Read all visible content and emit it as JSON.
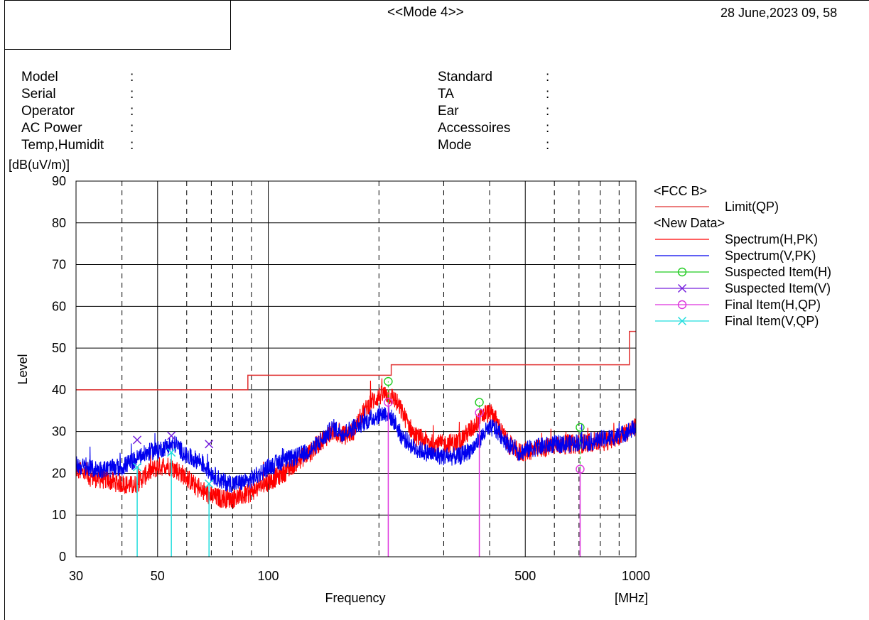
{
  "header": {
    "mode_title": "<<Mode 4>>",
    "datetime": "28 June,2023 09, 58"
  },
  "info_left": [
    {
      "label": "Model",
      "sep": ":"
    },
    {
      "label": "Serial",
      "sep": ":"
    },
    {
      "label": "Operator",
      "sep": ":"
    },
    {
      "label": "AC Power",
      "sep": ":"
    },
    {
      "label": "Temp,Humidit",
      "sep": ":"
    }
  ],
  "info_right": [
    {
      "label": "Standard",
      "sep": ":"
    },
    {
      "label": "TA",
      "sep": ":"
    },
    {
      "label": "Ear",
      "sep": ":"
    },
    {
      "label": "Accessoires",
      "sep": ":"
    },
    {
      "label": "Mode",
      "sep": ":"
    }
  ],
  "chart_data": {
    "type": "line",
    "xscale": "log",
    "xlim": [
      30,
      1000
    ],
    "ylim": [
      0,
      90
    ],
    "y_unit": "[dB(uV/m)]",
    "ylabel": "Level",
    "xlabel": "Frequency",
    "x_unit": "[MHz]",
    "x_ticks": [
      30,
      50,
      100,
      500,
      1000
    ],
    "y_ticks": [
      0,
      10,
      20,
      30,
      40,
      50,
      60,
      70,
      80,
      90
    ],
    "grid": true,
    "legend_position": "right",
    "colors": {
      "limit": "#e03030",
      "spec_h": "#ff0000",
      "spec_v": "#0000ee",
      "susp_h": "#22cc22",
      "susp_v": "#7722dd",
      "final_h": "#dd33dd",
      "final_v": "#22dddd"
    },
    "legend": {
      "limit_group": "<FCC B>",
      "limit_label": "Limit(QP)",
      "data_group": "<New Data>",
      "spec_h": "Spectrum(H,PK)",
      "spec_v": "Spectrum(V,PK)",
      "susp_h": "Suspected Item(H)",
      "susp_v": "Suspected Item(V)",
      "final_h": "Final Item(H,QP)",
      "final_v": "Final Item(V,QP)"
    },
    "limit_qp": [
      [
        30,
        40
      ],
      [
        88,
        40
      ],
      [
        88,
        43.5
      ],
      [
        216,
        43.5
      ],
      [
        216,
        46
      ],
      [
        960,
        46
      ],
      [
        960,
        54
      ],
      [
        1000,
        54
      ]
    ],
    "spectrum_h_pk": [
      [
        30,
        21
      ],
      [
        33,
        19
      ],
      [
        36,
        18.5
      ],
      [
        40,
        17.5
      ],
      [
        43,
        17
      ],
      [
        47,
        20
      ],
      [
        50,
        21.5
      ],
      [
        53,
        22
      ],
      [
        56,
        21
      ],
      [
        60,
        19
      ],
      [
        65,
        16
      ],
      [
        70,
        14.5
      ],
      [
        75,
        14
      ],
      [
        80,
        14
      ],
      [
        88,
        15
      ],
      [
        95,
        17
      ],
      [
        100,
        18
      ],
      [
        110,
        20
      ],
      [
        120,
        23
      ],
      [
        130,
        25
      ],
      [
        140,
        28
      ],
      [
        150,
        30
      ],
      [
        160,
        29
      ],
      [
        170,
        30
      ],
      [
        180,
        34
      ],
      [
        190,
        37
      ],
      [
        200,
        38.5
      ],
      [
        210,
        39
      ],
      [
        220,
        38
      ],
      [
        230,
        35
      ],
      [
        250,
        29
      ],
      [
        280,
        27
      ],
      [
        300,
        27
      ],
      [
        330,
        27.5
      ],
      [
        360,
        31
      ],
      [
        390,
        34.5
      ],
      [
        410,
        34
      ],
      [
        430,
        30
      ],
      [
        450,
        27
      ],
      [
        480,
        25
      ],
      [
        520,
        25.5
      ],
      [
        560,
        26
      ],
      [
        600,
        26.5
      ],
      [
        650,
        27
      ],
      [
        700,
        27
      ],
      [
        750,
        27.5
      ],
      [
        800,
        27.5
      ],
      [
        850,
        28
      ],
      [
        900,
        29
      ],
      [
        950,
        30
      ],
      [
        1000,
        31
      ]
    ],
    "spectrum_v_pk": [
      [
        30,
        22
      ],
      [
        33,
        21
      ],
      [
        36,
        21
      ],
      [
        40,
        21.5
      ],
      [
        43,
        23
      ],
      [
        47,
        25
      ],
      [
        50,
        25.5
      ],
      [
        53,
        26.5
      ],
      [
        56,
        27
      ],
      [
        60,
        24
      ],
      [
        65,
        23
      ],
      [
        70,
        20
      ],
      [
        75,
        18
      ],
      [
        80,
        17.5
      ],
      [
        88,
        18
      ],
      [
        95,
        20
      ],
      [
        100,
        21.5
      ],
      [
        110,
        23
      ],
      [
        120,
        24
      ],
      [
        130,
        25.5
      ],
      [
        140,
        28
      ],
      [
        150,
        31
      ],
      [
        160,
        29.5
      ],
      [
        170,
        31
      ],
      [
        180,
        32
      ],
      [
        190,
        33
      ],
      [
        200,
        34
      ],
      [
        210,
        34.5
      ],
      [
        220,
        32.5
      ],
      [
        230,
        29
      ],
      [
        250,
        26
      ],
      [
        280,
        24.5
      ],
      [
        300,
        24
      ],
      [
        330,
        24
      ],
      [
        360,
        26
      ],
      [
        390,
        30
      ],
      [
        410,
        31
      ],
      [
        430,
        29
      ],
      [
        450,
        27
      ],
      [
        480,
        25
      ],
      [
        520,
        26
      ],
      [
        560,
        26.5
      ],
      [
        600,
        27
      ],
      [
        650,
        27
      ],
      [
        700,
        27.5
      ],
      [
        750,
        27.5
      ],
      [
        800,
        28
      ],
      [
        850,
        28.5
      ],
      [
        900,
        29
      ],
      [
        950,
        30
      ],
      [
        1000,
        31
      ]
    ],
    "suspected_h": [
      [
        212,
        42
      ],
      [
        375,
        37
      ],
      [
        705,
        31
      ]
    ],
    "suspected_v": [
      [
        44,
        28
      ],
      [
        54.5,
        29
      ],
      [
        69,
        27
      ]
    ],
    "final_h_qp": [
      [
        212,
        37
      ],
      [
        375,
        34.5
      ],
      [
        705,
        21
      ]
    ],
    "final_v_qp": [
      [
        44,
        21.5
      ],
      [
        54.5,
        25
      ],
      [
        69,
        17.5
      ]
    ]
  }
}
